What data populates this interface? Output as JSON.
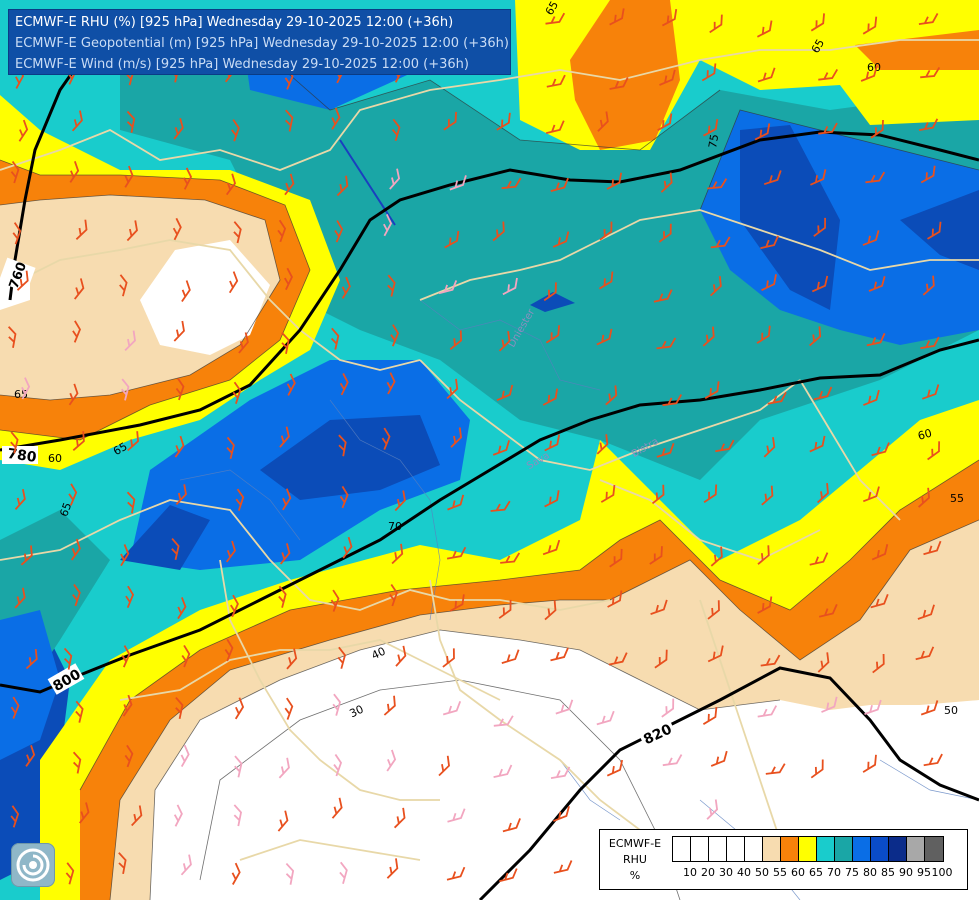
{
  "title": {
    "line1": "ECMWF-E RHU (%) [925 hPa] Wednesday 29-10-2025 12:00 (+36h)",
    "line2": "ECMWF-E Geopotential (m) [925 hPa] Wednesday 29-10-2025 12:00 (+36h)",
    "line3": "ECMWF-E Wind (m/s) [925 hPa] Wednesday 29-10-2025 12:00 (+36h)"
  },
  "legend": {
    "label_line1": "ECMWF-E",
    "label_line2": "RHU",
    "label_line3": "%",
    "ticks": [
      "10",
      "20",
      "30",
      "40",
      "50",
      "55",
      "60",
      "65",
      "70",
      "75",
      "80",
      "85",
      "90",
      "95",
      "100"
    ],
    "colors": [
      "#ffffff",
      "#ffffff",
      "#ffffff",
      "#ffffff",
      "#ffffff",
      "#f7dcb0",
      "#f7820a",
      "#ffff00",
      "#19cccc",
      "#1aa6a6",
      "#0a6ee6",
      "#0a4cc8",
      "#0b2c8a",
      "#a8a8a8",
      "#606060"
    ]
  },
  "colors": {
    "wind_barb": "#e8501e",
    "wind_barb_light": "#f2a6c0",
    "geopotential_contour": "#000000",
    "border": "#e8d8a8",
    "river": "#5a7fbf"
  },
  "geopotential_labels": [
    "760",
    "780",
    "800",
    "820"
  ],
  "rhu_labels": [
    "65",
    "65",
    "60",
    "65",
    "60",
    "65",
    "75",
    "70",
    "65",
    "60",
    "55",
    "50",
    "40",
    "30"
  ],
  "place_labels": [
    "Dniester",
    "Bistra",
    "Sava"
  ],
  "logo_icon": "ecmwf-logo-icon"
}
